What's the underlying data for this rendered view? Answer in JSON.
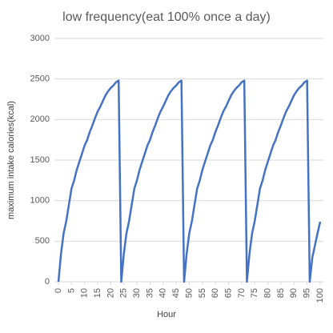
{
  "chart_data": {
    "type": "line",
    "title": "low frequency(eat 100% once a day)",
    "x_label": "Hour",
    "y_label": "maximum intake calories(kcal)",
    "x": [
      0,
      1,
      2,
      3,
      4,
      5,
      6,
      7,
      8,
      9,
      10,
      11,
      12,
      13,
      14,
      15,
      16,
      17,
      18,
      19,
      20,
      21,
      22,
      23,
      24,
      25,
      26,
      27,
      28,
      29,
      30,
      31,
      32,
      33,
      34,
      35,
      36,
      37,
      38,
      39,
      40,
      41,
      42,
      43,
      44,
      45,
      46,
      47,
      48,
      49,
      50,
      51,
      52,
      53,
      54,
      55,
      56,
      57,
      58,
      59,
      60,
      61,
      62,
      63,
      64,
      65,
      66,
      67,
      68,
      69,
      70,
      71,
      72,
      73,
      74,
      75,
      76,
      77,
      78,
      79,
      80,
      81,
      82,
      83,
      84,
      85,
      86,
      87,
      88,
      89,
      90,
      91,
      92,
      93,
      94,
      95,
      96,
      97,
      98,
      99,
      100
    ],
    "series": [
      {
        "name": "maximum intake calories(kcal)",
        "color": "#4472c4",
        "values": [
          0,
          350,
          600,
          750,
          950,
          1150,
          1250,
          1380,
          1480,
          1580,
          1680,
          1750,
          1850,
          1930,
          2020,
          2100,
          2160,
          2230,
          2300,
          2350,
          2390,
          2420,
          2460,
          2480,
          0,
          350,
          600,
          750,
          950,
          1150,
          1250,
          1380,
          1480,
          1580,
          1680,
          1750,
          1850,
          1930,
          2020,
          2100,
          2160,
          2230,
          2300,
          2350,
          2390,
          2420,
          2460,
          2480,
          0,
          350,
          600,
          750,
          950,
          1150,
          1250,
          1380,
          1480,
          1580,
          1680,
          1750,
          1850,
          1930,
          2020,
          2100,
          2160,
          2230,
          2300,
          2350,
          2390,
          2420,
          2460,
          2480,
          0,
          350,
          600,
          750,
          950,
          1150,
          1250,
          1380,
          1480,
          1580,
          1680,
          1750,
          1850,
          1930,
          2020,
          2100,
          2160,
          2230,
          2300,
          2350,
          2390,
          2420,
          2460,
          2480,
          0,
          300,
          450,
          600,
          740
        ]
      }
    ],
    "xlim": [
      0,
      100
    ],
    "xticks": [
      0,
      5,
      10,
      15,
      20,
      25,
      30,
      35,
      40,
      45,
      50,
      55,
      60,
      65,
      70,
      75,
      80,
      85,
      90,
      95,
      100
    ],
    "ylim": [
      0,
      3000
    ],
    "yticks": [
      0,
      500,
      1000,
      1500,
      2000,
      2500,
      3000
    ],
    "grid": true
  }
}
